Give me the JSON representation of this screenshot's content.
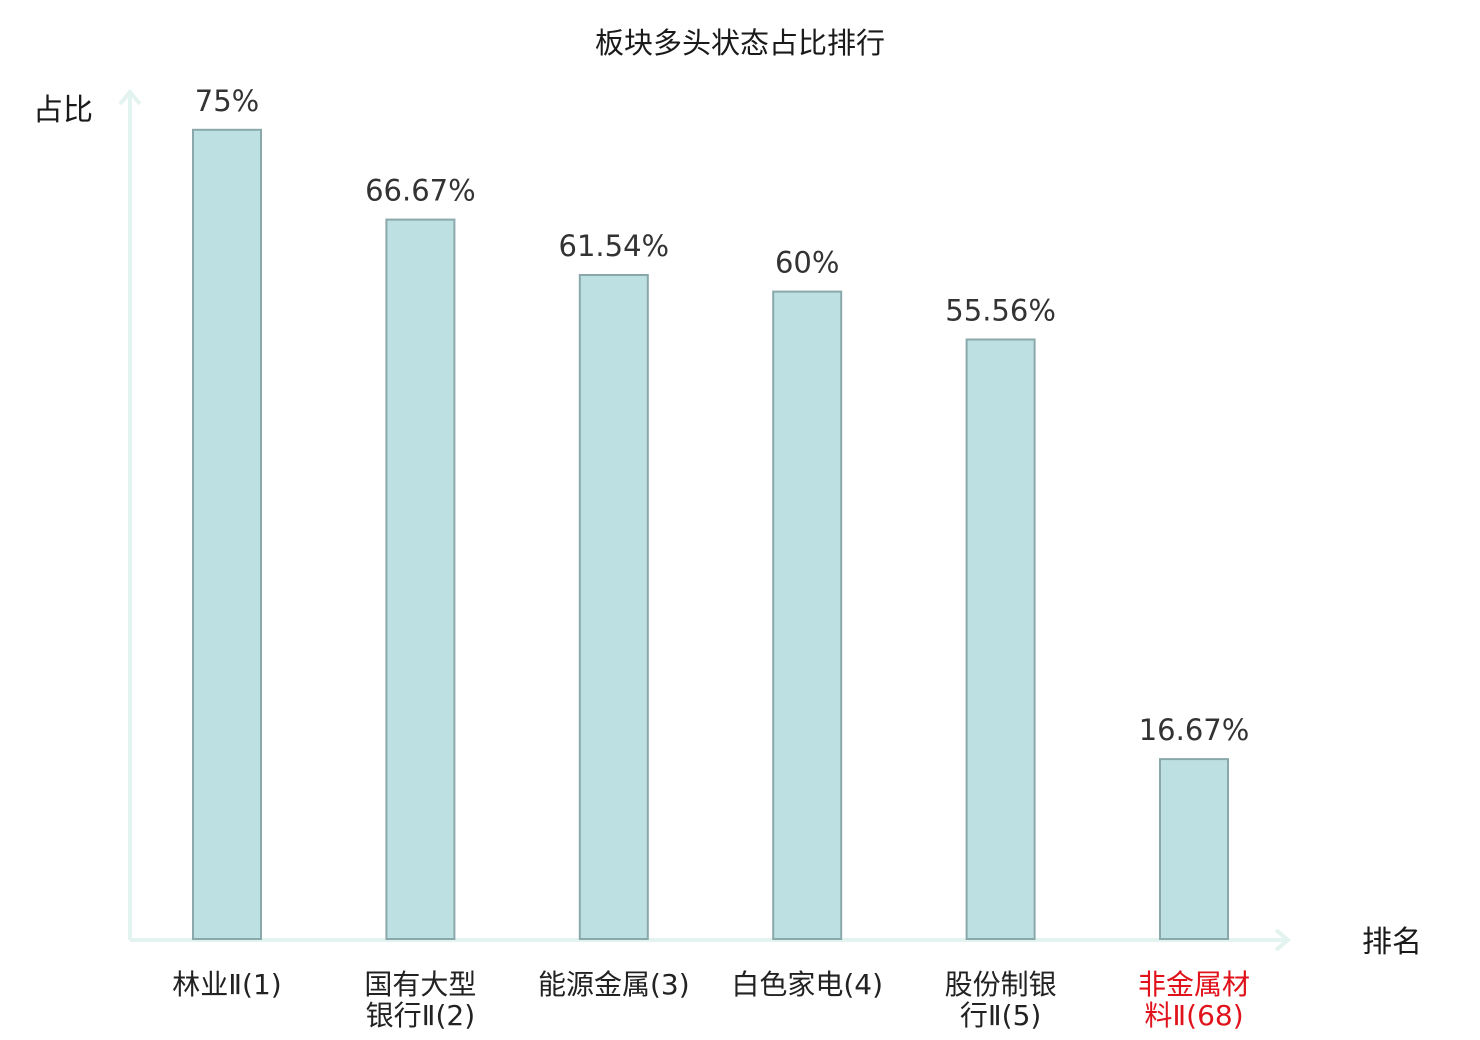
{
  "chart_data": {
    "type": "bar",
    "title": "板块多头状态占比排行",
    "ylabel": "占比",
    "xlabel": "排名",
    "ylim": [
      0,
      78.5
    ],
    "categories": [
      [
        "林业Ⅱ(1)"
      ],
      [
        "国有大型",
        "银行Ⅱ(2)"
      ],
      [
        "能源金属(3)"
      ],
      [
        "白色家电(4)"
      ],
      [
        "股份制银",
        "行Ⅱ(5)"
      ],
      [
        "非金属材",
        "料Ⅱ(68)"
      ]
    ],
    "values": [
      75,
      66.67,
      61.54,
      60,
      55.56,
      16.67
    ],
    "value_labels": [
      "75%",
      "66.67%",
      "61.54%",
      "60%",
      "55.56%",
      "16.67%"
    ],
    "highlight_index": 5,
    "grid": false,
    "legend": "none",
    "colors": {
      "bar_fill": "#bde0e2",
      "bar_stroke": "#8aa8ab",
      "axis": "#e3f3f0",
      "highlight_text": "#e0121b"
    }
  }
}
